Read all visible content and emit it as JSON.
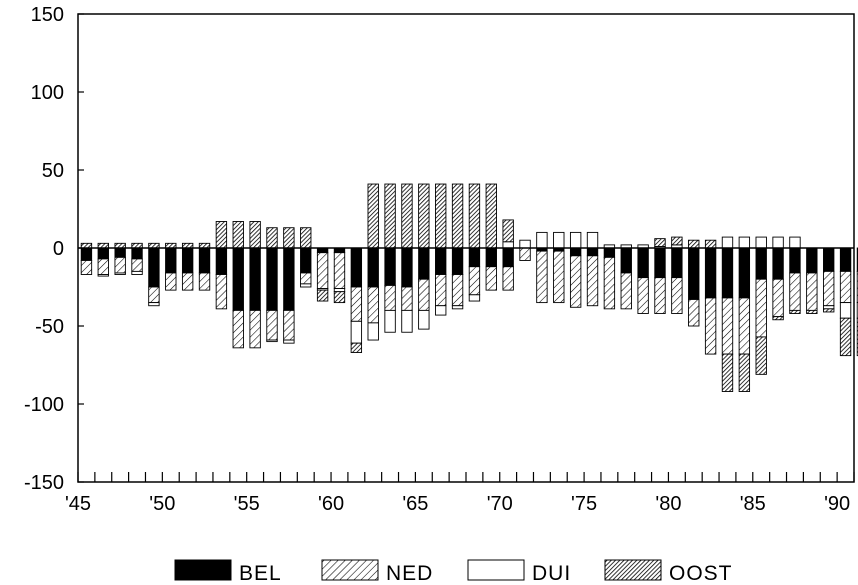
{
  "chart_data": {
    "type": "bar",
    "stacked": true,
    "title": "",
    "xlabel": "",
    "ylabel": "",
    "ylim": [
      -150,
      150
    ],
    "yticks": [
      150,
      100,
      50,
      0,
      -50,
      -100,
      -150
    ],
    "ytick_labels": [
      "150",
      "100",
      "50",
      "0",
      "-50",
      "-100",
      "-150"
    ],
    "xlim": [
      1945,
      1991
    ],
    "xtick_labels": [
      {
        "year": 1945,
        "label": "'45"
      },
      {
        "year": 1950,
        "label": "'50"
      },
      {
        "year": 1955,
        "label": "'55"
      },
      {
        "year": 1960,
        "label": "'60"
      },
      {
        "year": 1965,
        "label": "'65"
      },
      {
        "year": 1970,
        "label": "'70"
      },
      {
        "year": 1975,
        "label": "'75"
      },
      {
        "year": 1980,
        "label": "'80"
      },
      {
        "year": 1985,
        "label": "'85"
      },
      {
        "year": 1990,
        "label": "'90"
      }
    ],
    "grid": false,
    "legend_position": "bottom",
    "categories": [
      1945,
      1946,
      1947,
      1948,
      1949,
      1950,
      1951,
      1952,
      1953,
      1954,
      1955,
      1956,
      1957,
      1958,
      1959,
      1960,
      1961,
      1962,
      1963,
      1964,
      1965,
      1966,
      1967,
      1968,
      1969,
      1970,
      1971,
      1972,
      1973,
      1974,
      1975,
      1976,
      1977,
      1978,
      1979,
      1980,
      1981,
      1982,
      1983,
      1984,
      1985,
      1986,
      1987,
      1988,
      1989,
      1990,
      1991
    ],
    "series": [
      {
        "name": "BEL",
        "color": "#000000",
        "pattern": "solid",
        "values": [
          -8,
          -7,
          -6,
          -7,
          -25,
          -16,
          -16,
          -16,
          -17,
          -40,
          -40,
          -40,
          -40,
          -16,
          -3,
          -3,
          -25,
          -25,
          -24,
          -25,
          -20,
          -17,
          -17,
          -12,
          -12,
          -12,
          0,
          -2,
          -2,
          -5,
          -5,
          -6,
          -16,
          -19,
          -19,
          -19,
          -33,
          -32,
          -32,
          -32,
          -20,
          -20,
          -16,
          -16,
          -15,
          -15,
          -15
        ]
      },
      {
        "name": "NED",
        "color": "#000000",
        "pattern": "hatch-fine",
        "values": [
          -9,
          -10,
          -10,
          -8,
          -10,
          -11,
          -11,
          -11,
          -22,
          -24,
          -24,
          -19,
          -19,
          -7,
          -23,
          -23,
          -22,
          -23,
          -16,
          -15,
          -20,
          -20,
          -20,
          -18,
          -15,
          -15,
          -8,
          -33,
          -33,
          -33,
          -32,
          -33,
          -23,
          -23,
          -23,
          -23,
          -17,
          -36,
          -36,
          -36,
          -37,
          -24,
          -24,
          -24,
          -22,
          -20,
          -20
        ]
      },
      {
        "name": "DUI",
        "color": "#ffffff",
        "pattern": "white",
        "values": [
          0,
          -1,
          -1,
          -2,
          -2,
          0,
          0,
          0,
          0,
          0,
          0,
          -1,
          -2,
          -2,
          -1,
          -2,
          -14,
          -11,
          -14,
          -14,
          -12,
          -6,
          -2,
          -4,
          0,
          4,
          5,
          10,
          10,
          10,
          10,
          2,
          2,
          2,
          1,
          2,
          0,
          0,
          7,
          7,
          7,
          7,
          7,
          0,
          -2,
          -10,
          -10
        ]
      },
      {
        "name": "OOST",
        "color": "#000000",
        "pattern": "hatch-dense",
        "values": [
          3,
          3,
          3,
          3,
          3,
          3,
          3,
          3,
          17,
          17,
          17,
          13,
          13,
          13,
          -7,
          -7,
          -6,
          41,
          41,
          41,
          41,
          41,
          41,
          41,
          41,
          14,
          0,
          0,
          0,
          0,
          0,
          0,
          0,
          0,
          5,
          5,
          5,
          5,
          -24,
          -24,
          -24,
          -2,
          -2,
          -2,
          -2,
          -24,
          -24
        ]
      }
    ]
  }
}
